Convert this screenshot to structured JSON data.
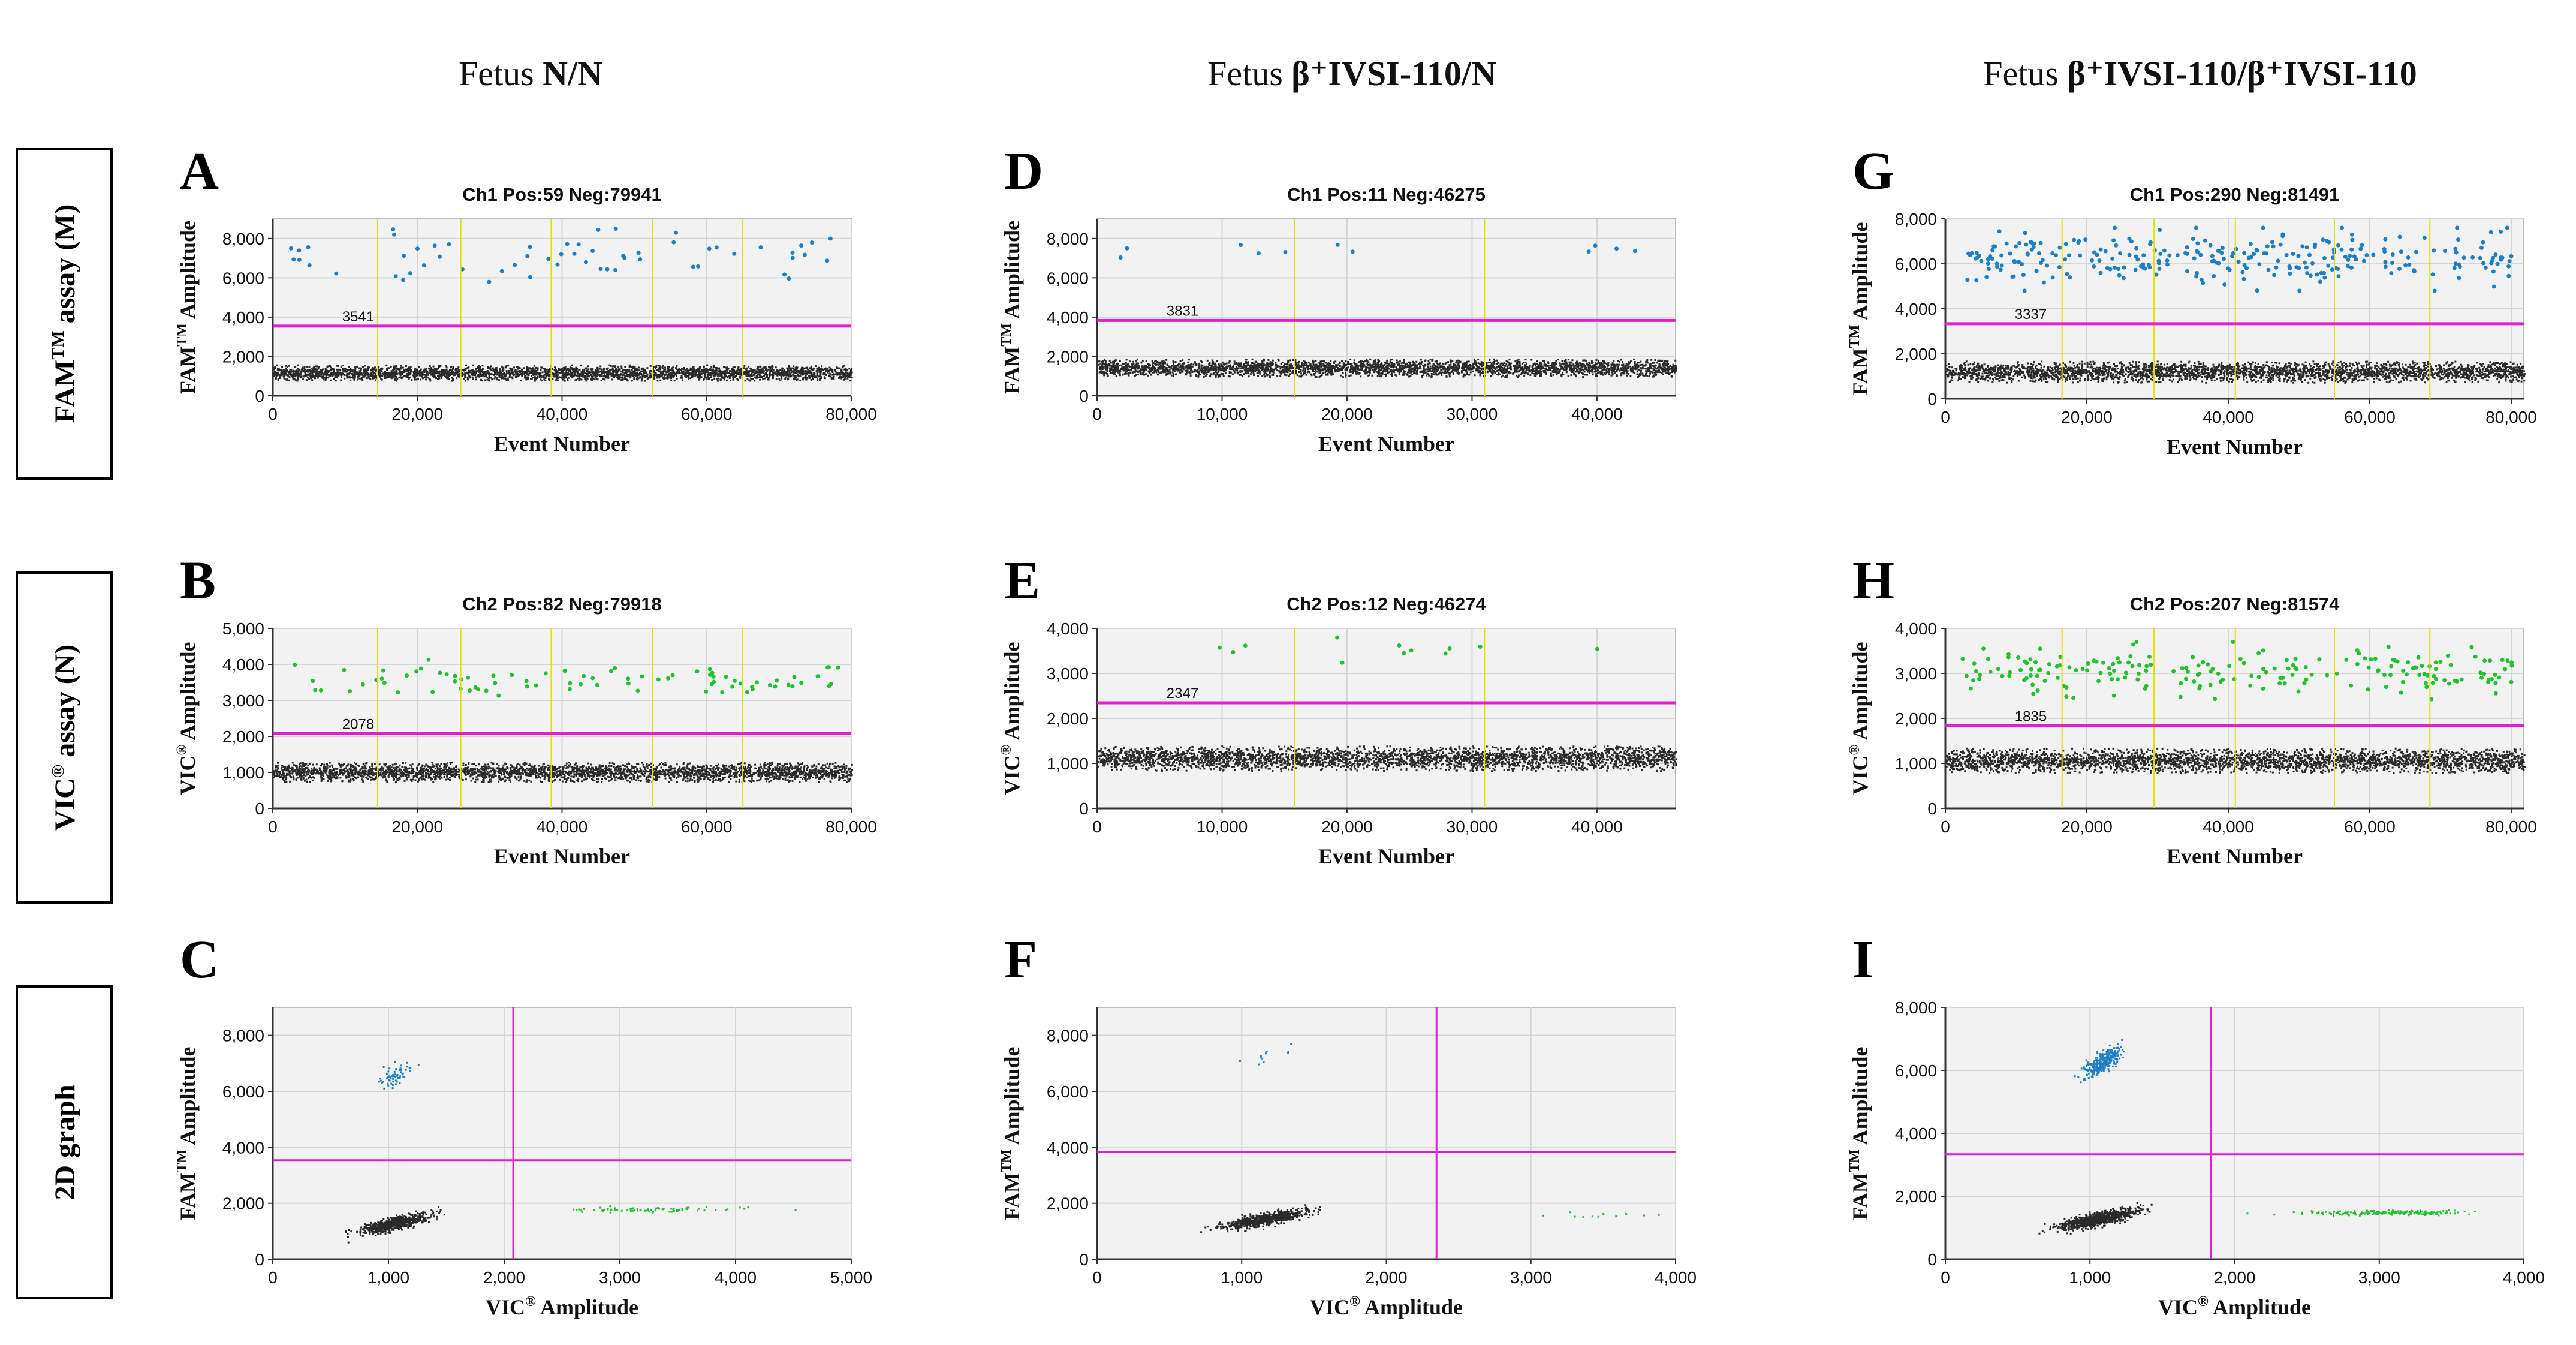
{
  "column_titles": [
    {
      "prefix": "Fetus ",
      "genotype": "N/N"
    },
    {
      "prefix": "Fetus ",
      "genotype": "β⁺IVSI-110/N"
    },
    {
      "prefix": "Fetus ",
      "genotype": "β⁺IVSI-110/β⁺IVSI-110"
    }
  ],
  "row_labels": [
    {
      "main": "FAM",
      "sup": "TM",
      "rest": " assay (M)"
    },
    {
      "main": "VIC",
      "sup": "®",
      "rest": " assay (N)"
    },
    {
      "main": "2D graph",
      "sup": "",
      "rest": ""
    }
  ],
  "colors": {
    "fam_positive": "#1f7fc4",
    "vic_positive": "#22c22e",
    "negative": "#2a2a2a",
    "threshold": "#e020d0",
    "well_divider": "#e6e000",
    "plot_bg": "#f2f2f2"
  },
  "chart_data": [
    {
      "panel": "A",
      "type": "scatter",
      "title": "Ch1 Pos:59 Neg:79941",
      "ylabel_main": "FAM",
      "ylabel_sup": "TM",
      "ylabel_rest": " Amplitude",
      "xlabel": "Event Number",
      "xlim": [
        0,
        80000
      ],
      "ylim": [
        0,
        9000
      ],
      "xticks": [
        0,
        20000,
        40000,
        60000,
        80000
      ],
      "xtick_labels": [
        "0",
        "20,000",
        "40,000",
        "60,000",
        "80,000"
      ],
      "yticks": [
        0,
        2000,
        4000,
        6000,
        8000
      ],
      "ytick_labels": [
        "0",
        "2,000",
        "4,000",
        "6,000",
        "8,000"
      ],
      "threshold": 3541,
      "threshold_label": "3541",
      "well_boundaries": [
        14500,
        26000,
        38500,
        52500,
        65000
      ],
      "negative_band": [
        800,
        1600
      ],
      "positive_range": [
        5600,
        8500
      ],
      "positive_count": 59,
      "positive_color_key": "fam_positive"
    },
    {
      "panel": "B",
      "type": "scatter",
      "title": "Ch2 Pos:82 Neg:79918",
      "ylabel_main": "VIC",
      "ylabel_sup": "®",
      "ylabel_rest": " Amplitude",
      "xlabel": "Event Number",
      "xlim": [
        0,
        80000
      ],
      "ylim": [
        0,
        5000
      ],
      "xticks": [
        0,
        20000,
        40000,
        60000,
        80000
      ],
      "xtick_labels": [
        "0",
        "20,000",
        "40,000",
        "60,000",
        "80,000"
      ],
      "yticks": [
        0,
        1000,
        2000,
        3000,
        4000,
        5000
      ],
      "ytick_labels": [
        "0",
        "1,000",
        "2,000",
        "3,000",
        "4,000",
        "5,000"
      ],
      "threshold": 2078,
      "threshold_label": "2078",
      "well_boundaries": [
        14500,
        26000,
        38500,
        52500,
        65000
      ],
      "negative_band": [
        750,
        1300
      ],
      "positive_range": [
        2900,
        4200
      ],
      "positive_count": 82,
      "positive_color_key": "vic_positive"
    },
    {
      "panel": "C",
      "type": "scatter2d",
      "ylabel_main": "FAM",
      "ylabel_sup": "TM",
      "ylabel_rest": " Amplitude",
      "xlabel_main": "VIC",
      "xlabel_sup": "®",
      "xlabel_rest": " Amplitude",
      "xlim": [
        0,
        5000
      ],
      "ylim": [
        0,
        9000
      ],
      "xticks": [
        0,
        1000,
        2000,
        3000,
        4000,
        5000
      ],
      "xtick_labels": [
        "0",
        "1,000",
        "2,000",
        "3,000",
        "4,000",
        "5,000"
      ],
      "yticks": [
        0,
        2000,
        4000,
        6000,
        8000
      ],
      "ytick_labels": [
        "0",
        "2,000",
        "4,000",
        "6,000",
        "8,000"
      ],
      "threshold_x": 2078,
      "threshold_y": 3541,
      "clusters": [
        {
          "color_key": "negative",
          "cx": 1050,
          "cy": 1300,
          "sx": 140,
          "sy": 220,
          "n": 700,
          "slope": 0.9
        },
        {
          "color_key": "fam_positive",
          "cx": 1050,
          "cy": 6600,
          "sx": 80,
          "sy": 400,
          "n": 59,
          "slope": 2.0
        },
        {
          "color_key": "vic_positive",
          "cx": 3300,
          "cy": 1800,
          "sx": 350,
          "sy": 90,
          "n": 82,
          "slope": 0.0
        }
      ]
    },
    {
      "panel": "D",
      "type": "scatter",
      "title": "Ch1 Pos:11 Neg:46275",
      "ylabel_main": "FAM",
      "ylabel_sup": "TM",
      "ylabel_rest": " Amplitude",
      "xlabel": "Event Number",
      "xlim": [
        0,
        46286
      ],
      "ylim": [
        0,
        9000
      ],
      "xticks": [
        0,
        10000,
        20000,
        30000,
        40000
      ],
      "xtick_labels": [
        "0",
        "10,000",
        "20,000",
        "30,000",
        "40,000"
      ],
      "yticks": [
        0,
        2000,
        4000,
        6000,
        8000
      ],
      "ytick_labels": [
        "0",
        "2,000",
        "4,000",
        "6,000",
        "8,000"
      ],
      "threshold": 3831,
      "threshold_label": "3831",
      "well_boundaries": [
        15800,
        31000
      ],
      "negative_band": [
        1000,
        1900
      ],
      "positive_range": [
        6500,
        8500
      ],
      "positive_count": 11,
      "positive_color_key": "fam_positive"
    },
    {
      "panel": "E",
      "type": "scatter",
      "title": "Ch2 Pos:12 Neg:46274",
      "ylabel_main": "VIC",
      "ylabel_sup": "®",
      "ylabel_rest": " Amplitude",
      "xlabel": "Event Number",
      "xlim": [
        0,
        46286
      ],
      "ylim": [
        0,
        4000
      ],
      "xticks": [
        0,
        10000,
        20000,
        30000,
        40000
      ],
      "xtick_labels": [
        "0",
        "10,000",
        "20,000",
        "30,000",
        "40,000"
      ],
      "yticks": [
        0,
        1000,
        2000,
        3000,
        4000
      ],
      "ytick_labels": [
        "0",
        "1,000",
        "2,000",
        "3,000",
        "4,000"
      ],
      "threshold": 2347,
      "threshold_label": "2347",
      "well_boundaries": [
        15800,
        31000
      ],
      "negative_band": [
        850,
        1400
      ],
      "positive_range": [
        3200,
        3900
      ],
      "positive_count": 12,
      "positive_color_key": "vic_positive"
    },
    {
      "panel": "F",
      "type": "scatter2d",
      "ylabel_main": "FAM",
      "ylabel_sup": "TM",
      "ylabel_rest": " Amplitude",
      "xlabel_main": "VIC",
      "xlabel_sup": "®",
      "xlabel_rest": " Amplitude",
      "xlim": [
        0,
        4000
      ],
      "ylim": [
        0,
        9000
      ],
      "xticks": [
        0,
        1000,
        2000,
        3000,
        4000
      ],
      "xtick_labels": [
        "0",
        "1,000",
        "2,000",
        "3,000",
        "4,000"
      ],
      "yticks": [
        0,
        2000,
        4000,
        6000,
        8000
      ],
      "ytick_labels": [
        "0",
        "2,000",
        "4,000",
        "6,000",
        "8,000"
      ],
      "threshold_x": 2347,
      "threshold_y": 3831,
      "clusters": [
        {
          "color_key": "negative",
          "cx": 1150,
          "cy": 1450,
          "sx": 140,
          "sy": 200,
          "n": 700,
          "slope": 0.9
        },
        {
          "color_key": "fam_positive",
          "cx": 1200,
          "cy": 7300,
          "sx": 120,
          "sy": 400,
          "n": 11,
          "slope": 1.5
        },
        {
          "color_key": "vic_positive",
          "cx": 3500,
          "cy": 1600,
          "sx": 200,
          "sy": 80,
          "n": 12,
          "slope": 0.0
        }
      ]
    },
    {
      "panel": "G",
      "type": "scatter",
      "title": "Ch1 Pos:290 Neg:81491",
      "ylabel_main": "FAM",
      "ylabel_sup": "TM",
      "ylabel_rest": " Amplitude",
      "xlabel": "Event Number",
      "xlim": [
        0,
        81781
      ],
      "ylim": [
        0,
        8000
      ],
      "xticks": [
        0,
        20000,
        40000,
        60000,
        80000
      ],
      "xtick_labels": [
        "0",
        "20,000",
        "40,000",
        "60,000",
        "80,000"
      ],
      "yticks": [
        0,
        2000,
        4000,
        6000,
        8000
      ],
      "ytick_labels": [
        "0",
        "2,000",
        "4,000",
        "6,000",
        "8,000"
      ],
      "threshold": 3337,
      "threshold_label": "3337",
      "well_boundaries": [
        16500,
        29500,
        41000,
        55000,
        68500
      ],
      "negative_band": [
        750,
        1700
      ],
      "positive_range": [
        4800,
        7600
      ],
      "positive_count": 290,
      "positive_color_key": "fam_positive"
    },
    {
      "panel": "H",
      "type": "scatter",
      "title": "Ch2 Pos:207 Neg:81574",
      "ylabel_main": "VIC",
      "ylabel_sup": "®",
      "ylabel_rest": " Amplitude",
      "xlabel": "Event Number",
      "xlim": [
        0,
        81781
      ],
      "ylim": [
        0,
        4000
      ],
      "xticks": [
        0,
        20000,
        40000,
        60000,
        80000
      ],
      "xtick_labels": [
        "0",
        "20,000",
        "40,000",
        "60,000",
        "80,000"
      ],
      "yticks": [
        0,
        1000,
        2000,
        3000,
        4000
      ],
      "ytick_labels": [
        "0",
        "1,000",
        "2,000",
        "3,000",
        "4,000"
      ],
      "threshold": 1835,
      "threshold_label": "1835",
      "well_boundaries": [
        16500,
        29500,
        41000,
        55000,
        68500
      ],
      "negative_band": [
        800,
        1350
      ],
      "positive_range": [
        2400,
        3700
      ],
      "positive_count": 207,
      "positive_color_key": "vic_positive"
    },
    {
      "panel": "I",
      "type": "scatter2d",
      "ylabel_main": "FAM",
      "ylabel_sup": "TM",
      "ylabel_rest": " Amplitude",
      "xlabel_main": "VIC",
      "xlabel_sup": "®",
      "xlabel_rest": " Amplitude",
      "xlim": [
        0,
        4000
      ],
      "ylim": [
        0,
        8000
      ],
      "xticks": [
        0,
        1000,
        2000,
        3000,
        4000
      ],
      "xtick_labels": [
        "0",
        "1,000",
        "2,000",
        "3,000",
        "4,000"
      ],
      "yticks": [
        0,
        2000,
        4000,
        6000,
        8000
      ],
      "ytick_labels": [
        "0",
        "2,000",
        "4,000",
        "6,000",
        "8,000"
      ],
      "threshold_x": 1835,
      "threshold_y": 3337,
      "clusters": [
        {
          "color_key": "negative",
          "cx": 1050,
          "cy": 1300,
          "sx": 130,
          "sy": 190,
          "n": 900,
          "slope": 0.9
        },
        {
          "color_key": "fam_positive",
          "cx": 1080,
          "cy": 6300,
          "sx": 70,
          "sy": 350,
          "n": 290,
          "slope": 2.5
        },
        {
          "color_key": "vic_positive",
          "cx": 3000,
          "cy": 1500,
          "sx": 260,
          "sy": 70,
          "n": 207,
          "slope": 0.0
        }
      ]
    }
  ]
}
